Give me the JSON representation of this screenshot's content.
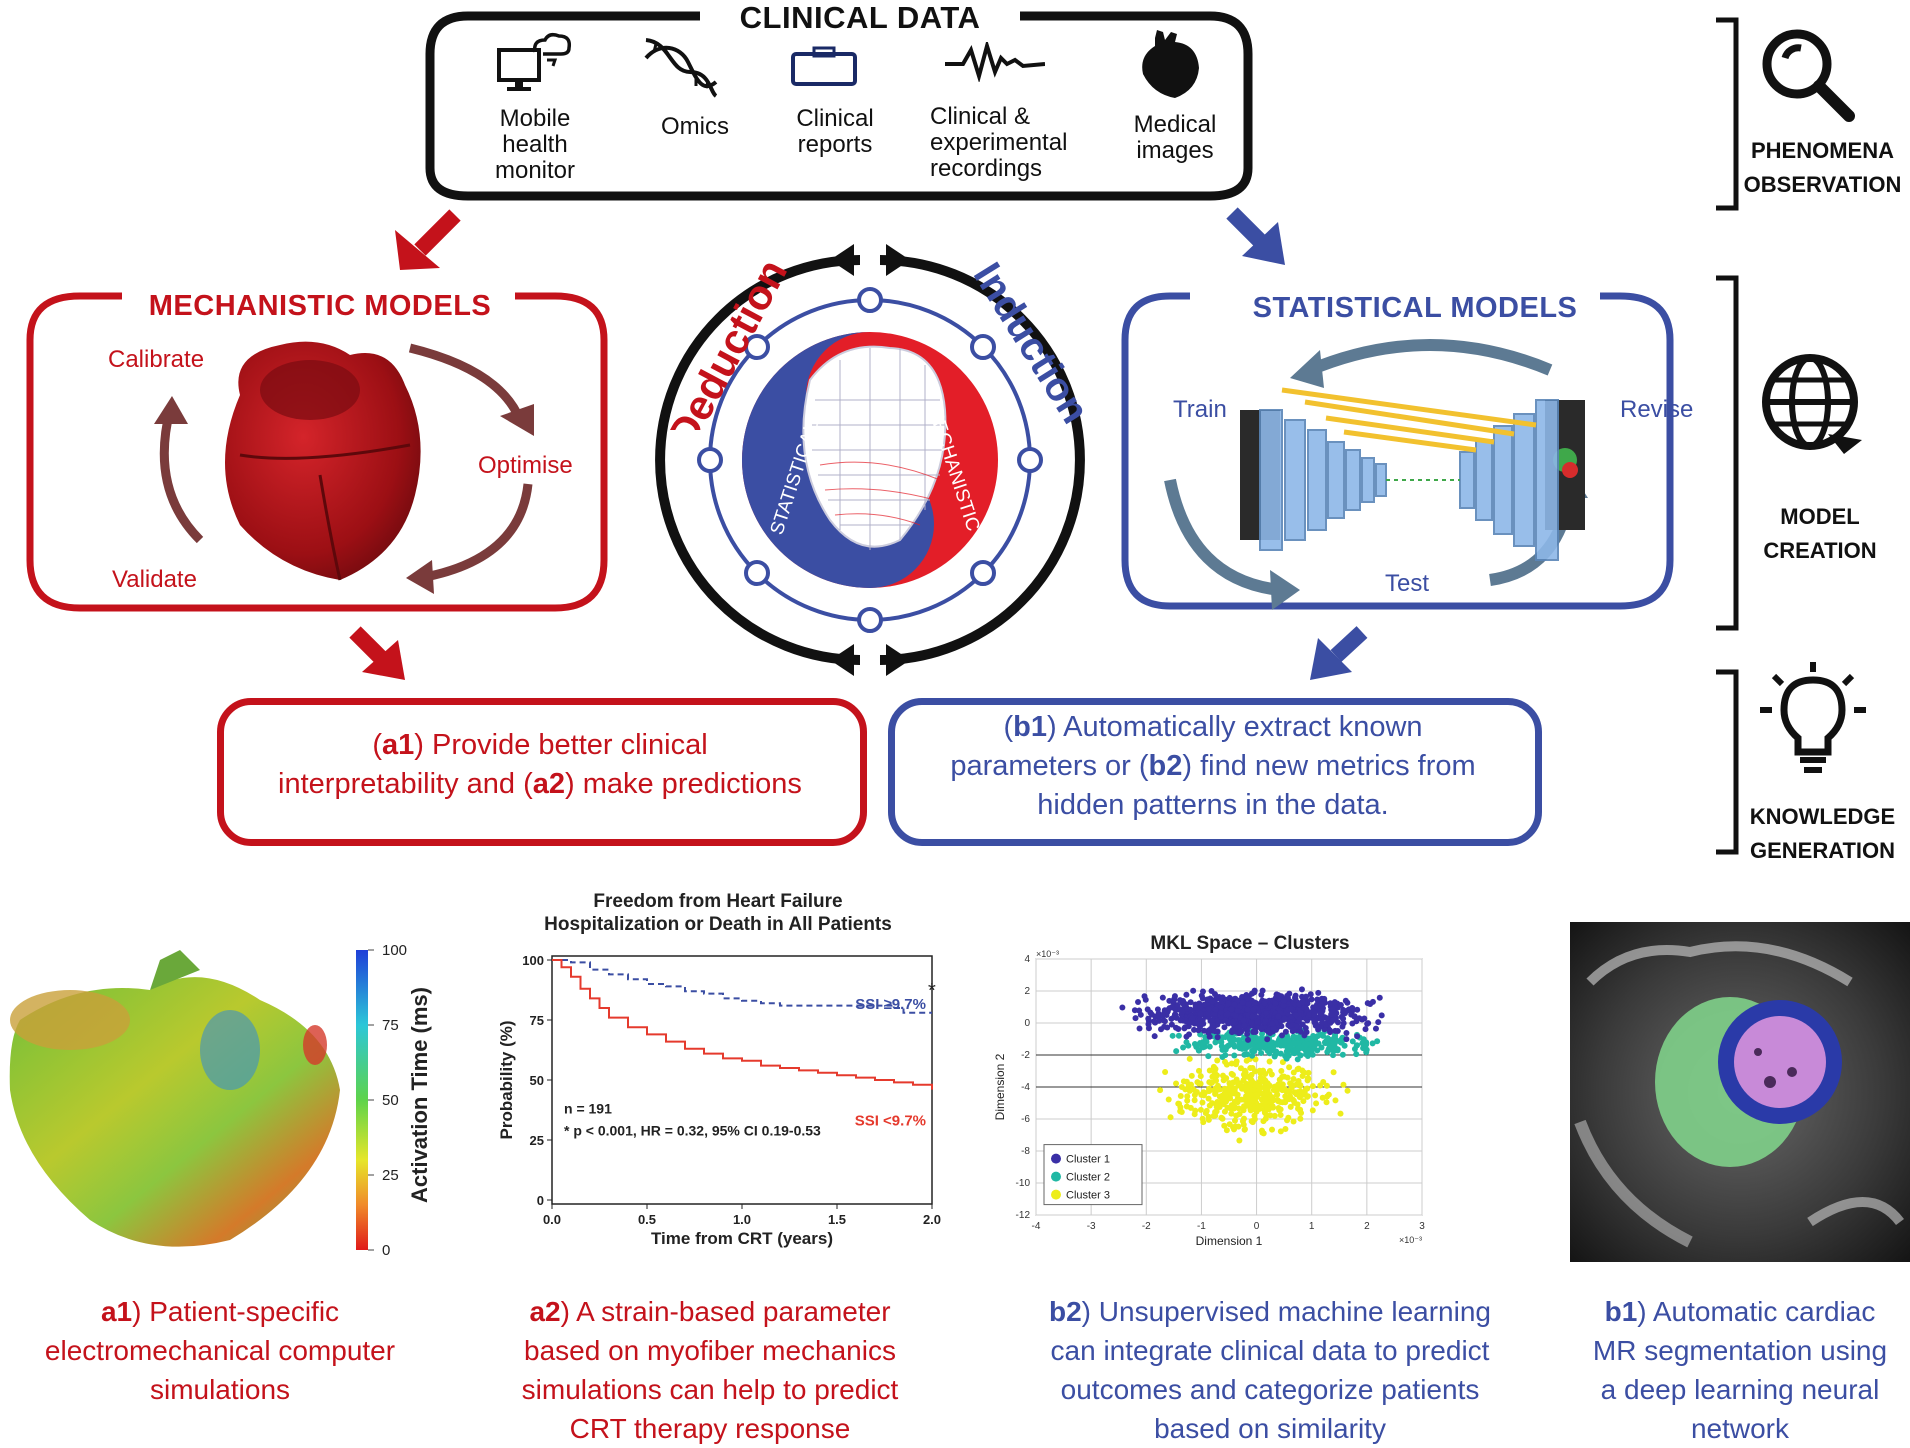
{
  "clinical_data": {
    "title": "CLINICAL DATA",
    "items": [
      {
        "label": "Mobile health monitor",
        "lines": [
          "Mobile",
          "health",
          "monitor"
        ],
        "icon": "computer-cloud-icon"
      },
      {
        "label": "Omics",
        "lines": [
          "Omics"
        ],
        "icon": "dna-icon"
      },
      {
        "label": "Clinical reports",
        "lines": [
          "Clinical",
          "reports"
        ],
        "icon": "briefcase-icon"
      },
      {
        "label": "Clinical & experimental recordings",
        "lines": [
          "Clinical &",
          "experimental",
          "recordings"
        ],
        "icon": "waveform-icon"
      },
      {
        "label": "Medical images",
        "lines": [
          "Medical",
          "images"
        ],
        "icon": "heart-icon"
      }
    ]
  },
  "side_labels": {
    "phenomena": [
      "PHENOMENA",
      "OBSERVATION"
    ],
    "model": [
      "MODEL",
      "CREATION"
    ],
    "knowledge": [
      "KNOWLEDGE",
      "GENERATION"
    ]
  },
  "mechanistic": {
    "title": "MECHANISTIC MODELS",
    "calibrate": "Calibrate",
    "optimise": "Optimise",
    "validate": "Validate"
  },
  "statistical": {
    "title": "STATISTICAL MODELS",
    "train": "Train",
    "revise": "Revise",
    "test": "Test"
  },
  "center": {
    "deduction": "Deduction",
    "induction": "Induction",
    "statistical": "STATISTICAL",
    "mechanistic": "MECHANISTIC"
  },
  "outcomes": {
    "a": {
      "line1": [
        {
          "b": false,
          "t": "("
        },
        {
          "b": true,
          "t": "a1"
        },
        {
          "b": false,
          "t": ") Provide better clinical"
        }
      ],
      "line2": [
        {
          "b": false,
          "t": "interpretability and ("
        },
        {
          "b": true,
          "t": "a2"
        },
        {
          "b": false,
          "t": ") make predictions"
        }
      ]
    },
    "b": {
      "line1": [
        {
          "b": false,
          "t": "("
        },
        {
          "b": true,
          "t": "b1"
        },
        {
          "b": false,
          "t": ") Automatically extract known"
        }
      ],
      "line2": [
        {
          "b": false,
          "t": "parameters or ("
        },
        {
          "b": true,
          "t": "b2"
        },
        {
          "b": false,
          "t": ") find new metrics from"
        }
      ],
      "line3": [
        {
          "b": false,
          "t": "hidden patterns in the data."
        }
      ]
    }
  },
  "colorbar": {
    "label": "Activation Time (ms)",
    "ticks": [
      "100",
      "75",
      "50",
      "25",
      "0"
    ]
  },
  "chart_data": [
    {
      "type": "line",
      "title": "Freedom from Heart Failure Hospitalization or Death in All Patients",
      "title_lines": [
        "Freedom from Heart Failure",
        "Hospitalization or Death in All Patients"
      ],
      "xlabel": "Time from CRT (years)",
      "ylabel": "Probability (%)",
      "xlim": [
        0,
        2.0
      ],
      "ylim": [
        0,
        100
      ],
      "xticks": [
        "0.0",
        "0.5",
        "1.0",
        "1.5",
        "2.0"
      ],
      "yticks": [
        "0",
        "25",
        "50",
        "75",
        "100"
      ],
      "series": [
        {
          "name": "SSI ≥9.7%",
          "color": "#3b4ea3",
          "dash": true,
          "x": [
            0,
            0.1,
            0.2,
            0.3,
            0.4,
            0.5,
            0.6,
            0.7,
            0.8,
            0.9,
            1.0,
            1.1,
            1.2,
            1.3,
            1.5,
            1.7,
            1.8,
            1.85,
            2.0
          ],
          "y": [
            100,
            99,
            96,
            94,
            92,
            90,
            89,
            87,
            86,
            84,
            83,
            82,
            81,
            81,
            81,
            81,
            80,
            78,
            78
          ]
        },
        {
          "name": "SSI <9.7%",
          "color": "#e53a2d",
          "dash": false,
          "x": [
            0,
            0.05,
            0.1,
            0.15,
            0.2,
            0.25,
            0.3,
            0.4,
            0.5,
            0.6,
            0.7,
            0.8,
            0.9,
            1.0,
            1.1,
            1.2,
            1.3,
            1.4,
            1.5,
            1.6,
            1.7,
            1.8,
            1.9,
            2.0
          ],
          "y": [
            100,
            97,
            93,
            88,
            84,
            80,
            76,
            72,
            69,
            66,
            63,
            61,
            59,
            58,
            56,
            55,
            54,
            53,
            52,
            51,
            50,
            49,
            48,
            46
          ]
        }
      ],
      "annotations": [
        "n = 191",
        "* p < 0.001, HR = 0.32, 95% CI 0.19-0.53",
        "*"
      ]
    },
    {
      "type": "scatter",
      "title": "MKL Space – Clusters",
      "xlabel": "Dimension 1",
      "ylabel": "Dimension 2",
      "xlim": [
        -4,
        3
      ],
      "ylim": [
        -12,
        4
      ],
      "xticks": [
        "-4",
        "-3",
        "-2",
        "-1",
        "0",
        "1",
        "2",
        "3"
      ],
      "yticks": [
        "4",
        "2",
        "0",
        "-2",
        "-4",
        "-6",
        "-8",
        "-10",
        "-12"
      ],
      "x_exponent": "×10⁻³",
      "y_exponent": "×10⁻³",
      "series": [
        {
          "name": "Cluster 1",
          "color": "#3a2fa6",
          "center": [
            0,
            0.6
          ],
          "spread": [
            1.55,
            1.0
          ]
        },
        {
          "name": "Cluster 2",
          "color": "#20b8a4",
          "center": [
            0.4,
            -1.3
          ],
          "spread": [
            1.3,
            0.7
          ]
        },
        {
          "name": "Cluster 3",
          "color": "#eded1a",
          "center": [
            -0.1,
            -4.5
          ],
          "spread": [
            1.0,
            1.6
          ]
        }
      ]
    }
  ],
  "captions": {
    "a1": {
      "bold": "a1",
      "lines": [
        ") Patient-specific",
        "electromechanical computer",
        "simulations"
      ]
    },
    "a2": {
      "bold": "a2",
      "lines": [
        ") A strain-based parameter",
        "based on myofiber mechanics",
        "simulations can help to predict",
        "CRT therapy response"
      ]
    },
    "b2": {
      "bold": "b2",
      "lines": [
        ") Unsupervised machine learning",
        "can integrate clinical data to predict",
        "outcomes and categorize patients",
        "based on similarity"
      ]
    },
    "b1": {
      "bold": "b1",
      "lines": [
        ") Automatic cardiac",
        "MR segmentation using",
        "a deep learning neural",
        "network"
      ]
    }
  },
  "colors": {
    "red": "#c4121b",
    "blue": "#3b4ea3",
    "black": "#111111"
  }
}
